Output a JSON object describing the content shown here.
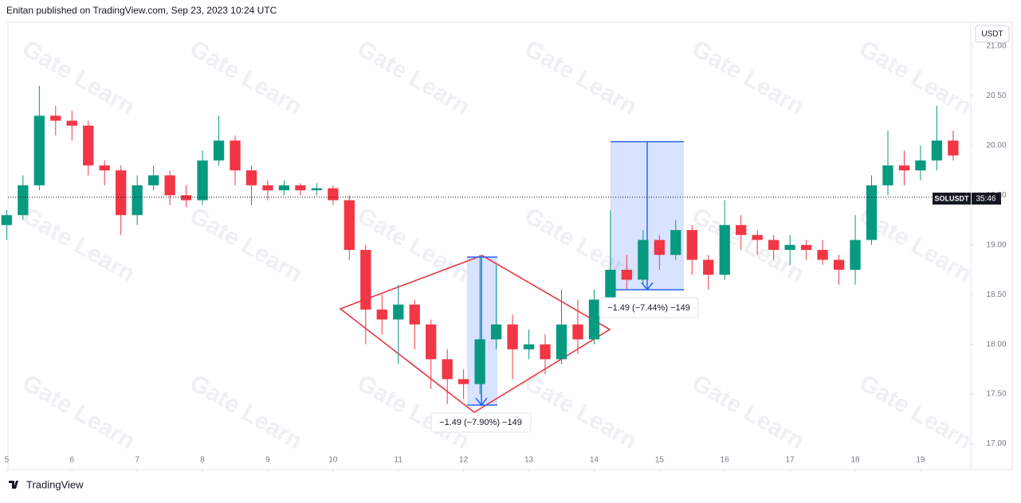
{
  "header": "Enitan published on TradingView.com, Sep 23, 2023 10:24 UTC",
  "footer": "TradingView",
  "chart_data": {
    "type": "candlestick",
    "symbol": "SOLUSDT",
    "currency": "USDT",
    "countdown": "35:46",
    "watermark": "Gate Learn",
    "up_color": "#089981",
    "down_color": "#f23645",
    "price_line": 19.48,
    "annotations": [
      "−1.49 (−7.90%) −149",
      "−1.49 (−7.44%) −149"
    ],
    "xlim": [
      5.02,
      19.77
    ],
    "xticks": [
      5,
      6,
      7,
      8,
      9,
      10,
      11,
      12,
      13,
      14,
      15,
      16,
      17,
      18,
      19
    ],
    "ylim": [
      16.74,
      21.24
    ],
    "yticks": [
      {
        "value": 17,
        "label": "17.00"
      },
      {
        "value": 17.5,
        "label": "17.50"
      },
      {
        "value": 18,
        "label": "18.00"
      },
      {
        "value": 18.5,
        "label": "18.50"
      },
      {
        "value": 19,
        "label": "19.00"
      },
      {
        "value": 19.5,
        "label": "19.50"
      },
      {
        "value": 20,
        "label": "20.00"
      },
      {
        "value": 20.5,
        "label": "20.50"
      },
      {
        "value": 21,
        "label": "21.00"
      }
    ],
    "x": [
      5,
      5.25,
      5.5,
      5.75,
      6,
      6.25,
      6.5,
      6.75,
      7,
      7.25,
      7.5,
      7.75,
      8,
      8.25,
      8.5,
      8.75,
      9,
      9.25,
      9.5,
      9.75,
      10,
      10.25,
      10.5,
      10.75,
      11,
      11.25,
      11.5,
      11.75,
      12,
      12.25,
      12.5,
      12.75,
      13,
      13.25,
      13.5,
      13.75,
      14,
      14.25,
      14.5,
      14.75,
      15,
      15.25,
      15.5,
      15.75,
      16,
      16.25,
      16.5,
      16.75,
      17,
      17.25,
      17.5,
      17.75,
      18,
      18.25,
      18.5,
      18.75,
      19,
      19.25,
      19.5
    ],
    "open": [
      19.2,
      19.3,
      19.6,
      20.3,
      20.25,
      20.2,
      19.8,
      19.75,
      19.3,
      19.6,
      19.7,
      19.5,
      19.45,
      19.85,
      20.05,
      19.75,
      19.6,
      19.55,
      19.6,
      19.55,
      19.57,
      19.45,
      18.95,
      18.35,
      18.25,
      18.4,
      18.2,
      17.85,
      17.65,
      17.6,
      18.05,
      18.2,
      17.95,
      18.0,
      17.85,
      18.2,
      18.05,
      18.45,
      18.75,
      18.65,
      19.05,
      18.9,
      19.15,
      18.85,
      18.7,
      19.2,
      19.1,
      19.05,
      18.95,
      19.0,
      18.95,
      18.85,
      18.75,
      19.05,
      19.6,
      19.8,
      19.75,
      19.85,
      20.05
    ],
    "high": [
      19.35,
      19.7,
      20.6,
      20.4,
      20.35,
      20.25,
      19.85,
      19.8,
      19.7,
      19.8,
      19.75,
      19.6,
      19.95,
      20.3,
      20.1,
      19.8,
      19.65,
      19.65,
      19.62,
      19.62,
      19.6,
      19.5,
      19.0,
      18.5,
      18.6,
      18.45,
      18.25,
      17.95,
      17.75,
      18.9,
      18.8,
      18.3,
      18.15,
      18.1,
      18.55,
      18.45,
      18.55,
      19.35,
      18.9,
      19.15,
      19.1,
      19.25,
      19.2,
      18.9,
      19.45,
      19.3,
      19.15,
      19.1,
      19.1,
      19.05,
      19.05,
      18.9,
      19.3,
      19.7,
      20.15,
      19.95,
      20.0,
      20.4,
      20.15
    ],
    "low": [
      19.05,
      19.25,
      19.55,
      20.1,
      20.05,
      19.7,
      19.6,
      19.1,
      19.2,
      19.55,
      19.4,
      19.38,
      19.4,
      19.8,
      19.6,
      19.4,
      19.45,
      19.5,
      19.5,
      19.5,
      19.4,
      18.85,
      18.0,
      18.1,
      17.8,
      17.95,
      17.55,
      17.4,
      17.45,
      17.5,
      17.95,
      17.65,
      17.85,
      17.7,
      17.8,
      17.9,
      18.0,
      18.4,
      18.55,
      18.6,
      18.75,
      18.85,
      18.7,
      18.55,
      18.65,
      18.95,
      18.9,
      18.85,
      18.8,
      18.85,
      18.8,
      18.6,
      18.6,
      19.0,
      19.5,
      19.6,
      19.65,
      19.75,
      19.85
    ],
    "close": [
      19.3,
      19.6,
      20.3,
      20.25,
      20.2,
      19.8,
      19.75,
      19.3,
      19.6,
      19.7,
      19.5,
      19.45,
      19.85,
      20.05,
      19.75,
      19.6,
      19.55,
      19.6,
      19.55,
      19.57,
      19.45,
      18.95,
      18.35,
      18.25,
      18.4,
      18.2,
      17.85,
      17.65,
      17.6,
      18.05,
      18.2,
      17.95,
      18.0,
      17.85,
      18.2,
      18.05,
      18.45,
      18.75,
      18.65,
      19.05,
      18.9,
      19.15,
      18.85,
      18.7,
      19.2,
      19.1,
      19.05,
      18.95,
      19.0,
      18.95,
      18.85,
      18.75,
      19.05,
      19.6,
      19.8,
      19.75,
      19.85,
      20.05,
      19.9
    ]
  }
}
